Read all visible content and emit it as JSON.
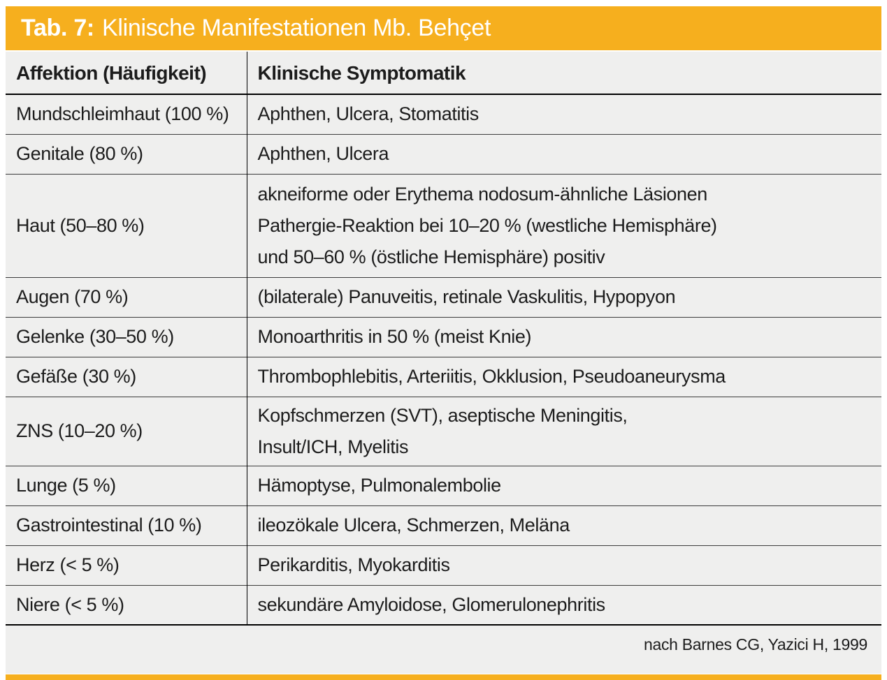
{
  "title": {
    "prefix": "Tab. 7:",
    "text": "Klinische Manifestationen Mb. Behçet"
  },
  "colors": {
    "accent": "#F6AF1E",
    "panel_bg": "#EFEFEE",
    "title_text": "#FFFFFF",
    "body_text": "#1C1C1C",
    "border": "#000000"
  },
  "table": {
    "headers": [
      "Affektion (Häufigkeit)",
      "Klinische Symptomatik"
    ],
    "rows": [
      {
        "affektion": "Mundschleimhaut (100 %)",
        "symptomatik": "Aphthen, Ulcera, Stomatitis"
      },
      {
        "affektion": "Genitale (80 %)",
        "symptomatik": "Aphthen, Ulcera"
      },
      {
        "affektion": "Haut (50–80 %)",
        "symptomatik": "akneiforme oder Erythema nodosum-ähnliche Läsionen\nPathergie-Reaktion bei 10–20 % (westliche Hemisphäre)\nund 50–60 % (östliche Hemisphäre) positiv"
      },
      {
        "affektion": "Augen (70 %)",
        "symptomatik": "(bilaterale) Panuveitis, retinale Vaskulitis, Hypopyon"
      },
      {
        "affektion": "Gelenke (30–50 %)",
        "symptomatik": "Monoarthritis in 50 % (meist Knie)"
      },
      {
        "affektion": "Gefäße (30 %)",
        "symptomatik": "Thrombophlebitis, Arteriitis, Okklusion, Pseudoaneurysma"
      },
      {
        "affektion": "ZNS (10–20 %)",
        "symptomatik": "Kopfschmerzen (SVT), aseptische Meningitis,\nInsult/ICH, Myelitis"
      },
      {
        "affektion": "Lunge (5 %)",
        "symptomatik": "Hämoptyse, Pulmonalembolie"
      },
      {
        "affektion": "Gastrointestinal (10 %)",
        "symptomatik": "ileozökale Ulcera, Schmerzen, Meläna"
      },
      {
        "affektion": "Herz (< 5 %)",
        "symptomatik": "Perikarditis, Myokarditis"
      },
      {
        "affektion": "Niere (< 5 %)",
        "symptomatik": "sekundäre Amyloidose, Glomerulonephritis"
      }
    ]
  },
  "footer": {
    "source": "nach Barnes CG, Yazici H, 1999"
  }
}
